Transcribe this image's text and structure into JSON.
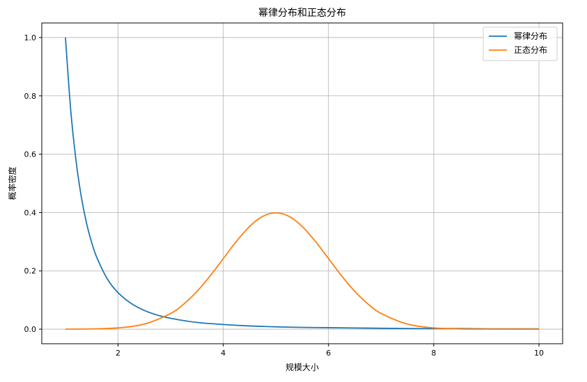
{
  "chart_data": {
    "type": "line",
    "title": "幂律分布和正态分布",
    "xlabel": "规模大小",
    "ylabel": "概率密度",
    "xlim": [
      0.55,
      10.45
    ],
    "ylim": [
      -0.05,
      1.05
    ],
    "xticks": [
      2,
      4,
      6,
      8,
      10
    ],
    "yticks": [
      0.0,
      0.2,
      0.4,
      0.6,
      0.8,
      1.0
    ],
    "xtick_labels": [
      "2",
      "4",
      "6",
      "8",
      "10"
    ],
    "ytick_labels": [
      "0.0",
      "0.2",
      "0.4",
      "0.6",
      "0.8",
      "1.0"
    ],
    "grid": true,
    "legend_position": "top-right",
    "series": [
      {
        "name": "幂律分布",
        "color": "#1f77b4",
        "x": [
          1.0,
          1.1,
          1.2,
          1.3,
          1.4,
          1.5,
          1.6,
          1.8,
          2.0,
          2.25,
          2.5,
          2.75,
          3.0,
          3.5,
          4.0,
          4.5,
          5.0,
          5.5,
          6.0,
          6.5,
          7.0,
          7.5,
          8.0,
          8.5,
          9.0,
          9.5,
          10.0
        ],
        "y": [
          1.0,
          0.751,
          0.579,
          0.455,
          0.364,
          0.296,
          0.244,
          0.171,
          0.125,
          0.088,
          0.064,
          0.048,
          0.037,
          0.023,
          0.016,
          0.011,
          0.008,
          0.006,
          0.005,
          0.004,
          0.003,
          0.002,
          0.002,
          0.002,
          0.001,
          0.001,
          0.001
        ]
      },
      {
        "name": "正态分布",
        "color": "#ff7f0e",
        "x": [
          1.0,
          1.5,
          2.0,
          2.5,
          3.0,
          3.25,
          3.5,
          3.75,
          4.0,
          4.25,
          4.5,
          4.75,
          5.0,
          5.25,
          5.5,
          5.75,
          6.0,
          6.25,
          6.5,
          6.75,
          7.0,
          7.5,
          8.0,
          8.5,
          9.0,
          9.5,
          10.0
        ],
        "y": [
          0.0001,
          0.0009,
          0.0044,
          0.0175,
          0.054,
          0.0863,
          0.1295,
          0.1826,
          0.242,
          0.3011,
          0.3521,
          0.3867,
          0.3989,
          0.3867,
          0.3521,
          0.3011,
          0.242,
          0.1826,
          0.1295,
          0.0863,
          0.054,
          0.0175,
          0.0044,
          0.0009,
          0.0001,
          0.0,
          0.0
        ]
      }
    ]
  }
}
